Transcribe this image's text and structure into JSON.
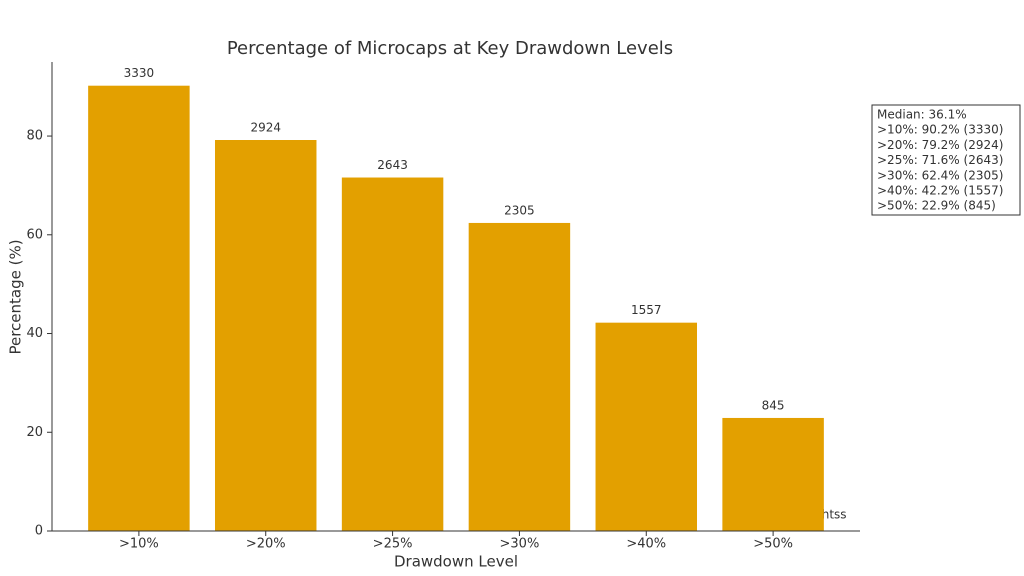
{
  "chart_data": {
    "type": "bar",
    "title": "Percentage of Microcaps at Key Drawdown Levels",
    "x_label": "Drawdown Level",
    "y_label": "Percentage (%)",
    "categories": [
      ">10%",
      ">20%",
      ">25%",
      ">30%",
      ">40%",
      ">50%"
    ],
    "values": [
      90.2,
      79.2,
      71.6,
      62.4,
      42.2,
      22.9
    ],
    "counts": [
      3330,
      2924,
      2643,
      2305,
      1557,
      845
    ],
    "color": "#e3a000",
    "ylim": [
      0,
      95
    ],
    "yticks": [
      0,
      20,
      40,
      60,
      80
    ],
    "annotation_lines": [
      "Median: 36.1%",
      ">10%: 90.2% (3330)",
      ">20%: 79.2% (2924)",
      ">25%: 71.6% (2643)",
      ">30%: 62.4% (2305)",
      ">40%: 42.2% (1557)",
      ">50%: 22.9% (845)"
    ],
    "watermark": "@EquityInsightss"
  }
}
